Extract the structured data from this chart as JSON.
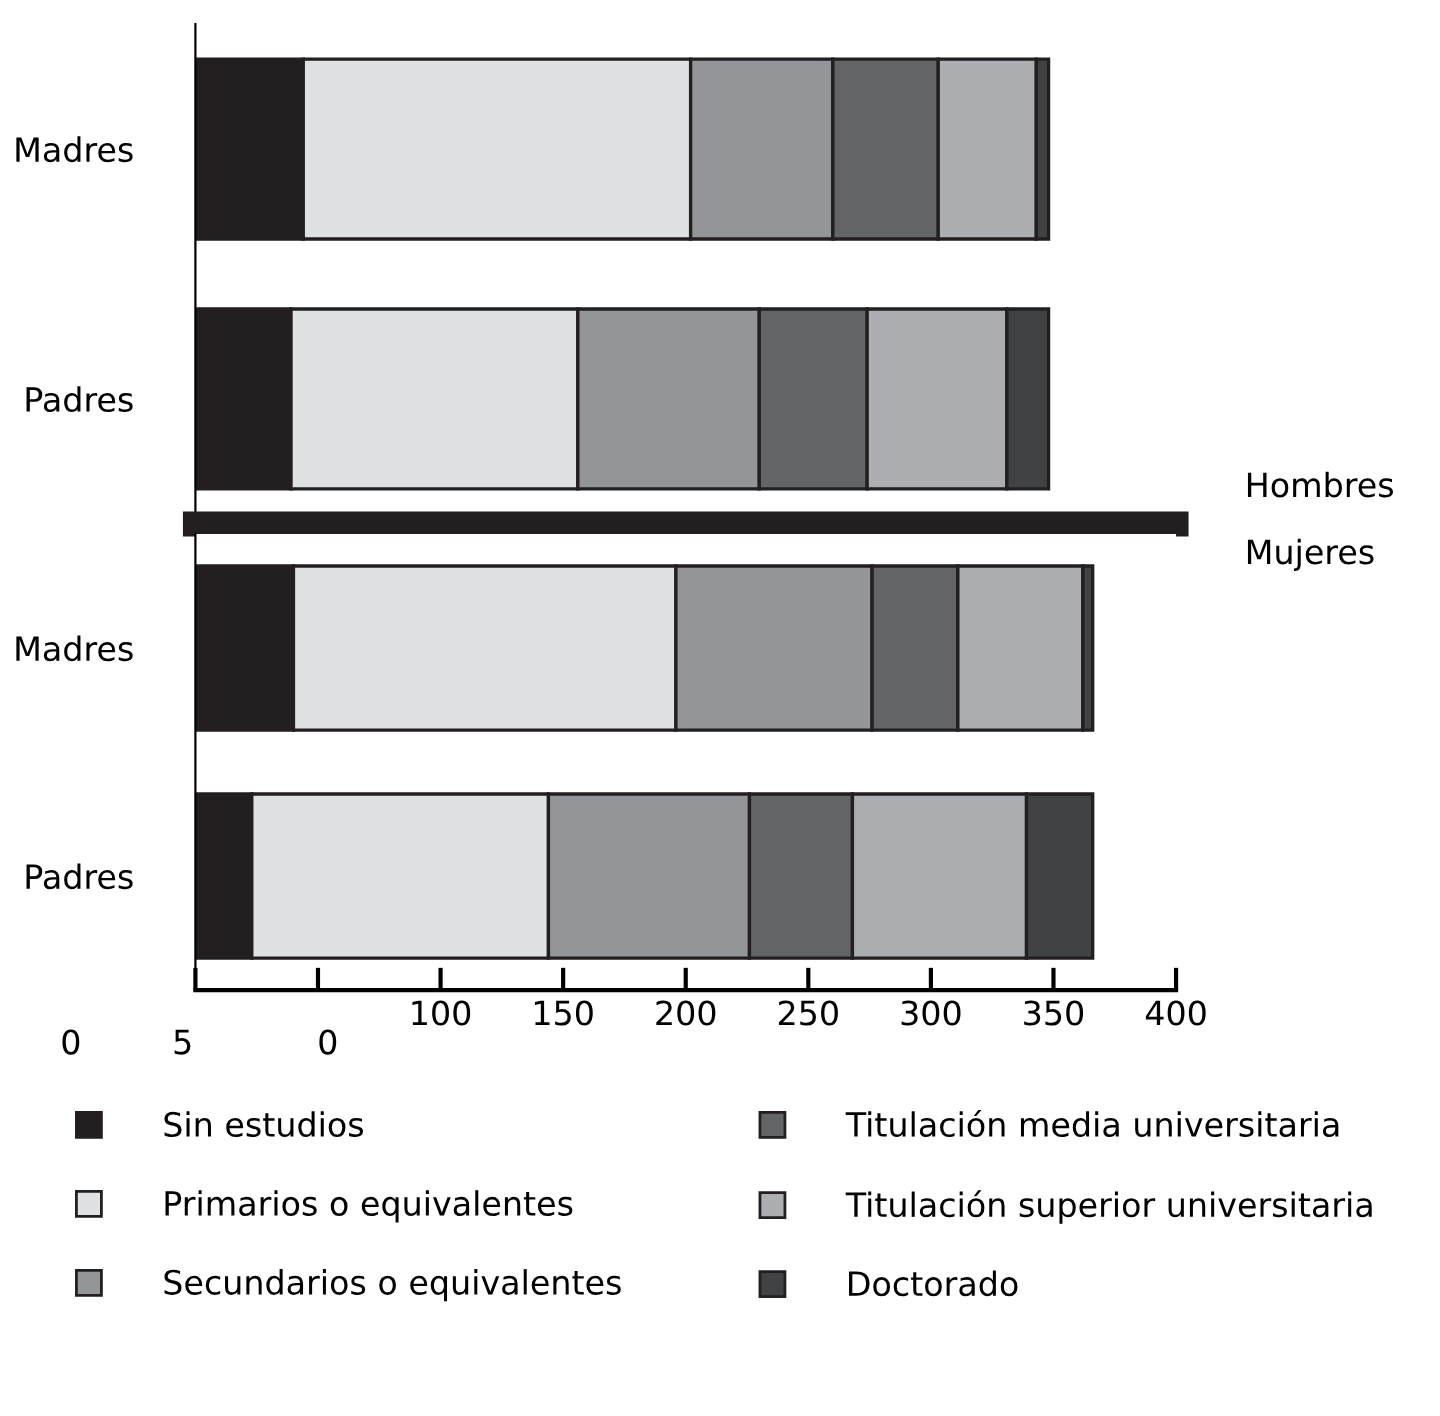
{
  "chart_data": [
    {
      "type": "bar",
      "orientation": "horizontal",
      "stacked": true,
      "categories": [
        "Madres",
        "Padres"
      ],
      "xlim": [
        0,
        400
      ],
      "tick_labels": "y",
      "annotations": [
        "Hombres"
      ],
      "legend": false,
      "series": [
        {
          "color": "#231f20",
          "values": [
            44,
            39
          ]
        },
        {
          "color": "#e0e1e3",
          "values": [
            158,
            117
          ]
        },
        {
          "color": "#939598",
          "values": [
            58,
            74
          ]
        },
        {
          "color": "#636466",
          "values": [
            43,
            44
          ]
        },
        {
          "color": "#adaeb1",
          "values": [
            40,
            57
          ]
        },
        {
          "color": "#414243",
          "values": [
            5,
            17
          ]
        }
      ]
    },
    {
      "type": "bar",
      "orientation": "horizontal",
      "stacked": true,
      "categories": [
        "Madres",
        "Padres"
      ],
      "xlim": [
        0,
        400
      ],
      "xticks": [
        {
          "value": 0,
          "label": null
        },
        {
          "value": 50,
          "label": null
        },
        100,
        150,
        200,
        250,
        300,
        350,
        400
      ],
      "annotations": [
        "Mujeres",
        "0",
        "5",
        "0"
      ],
      "legend": "bottom",
      "series": [
        {
          "name": "Sin estudios",
          "color": "#231f20",
          "values": [
            40,
            23
          ]
        },
        {
          "name": "Primarios o equivalentes",
          "color": "#e0e1e3",
          "values": [
            156,
            121
          ]
        },
        {
          "name": "Secundarios o equivalentes",
          "color": "#939598",
          "values": [
            80,
            82
          ]
        },
        {
          "name": "Titulación media universitaria",
          "color": "#636466",
          "values": [
            35,
            42
          ]
        },
        {
          "name": "Titulación superior universitaria",
          "color": "#adaeb1",
          "values": [
            51,
            71
          ]
        },
        {
          "name": "Doctorado",
          "color": "#414243",
          "values": [
            4,
            27
          ]
        }
      ]
    }
  ]
}
